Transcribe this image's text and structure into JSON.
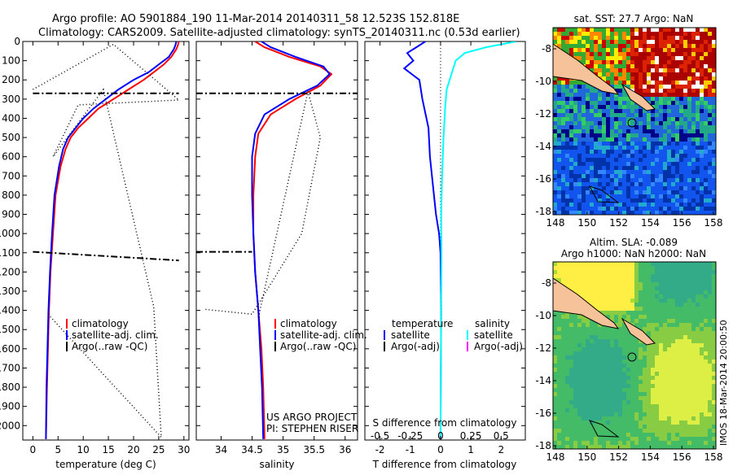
{
  "header": {
    "line1": "Argo profile: AO 5901884_190 11-Mar-2014 20140311_58 12.523S 152.818E",
    "line2": "Climatology: CARS2009. Satellite-adjusted climatology: synTS_20140311.nc (0.53d earlier)"
  },
  "colors": {
    "climatology": "#ff0000",
    "satellite": "#0000ff",
    "argo": "#000000",
    "salinity_satellite": "#00ffff",
    "salinity_argo": "#ff00ff"
  },
  "chart_data": [
    {
      "type": "line",
      "name": "temperature-panel",
      "xlabel": "temperature (deg C)",
      "ylabel": "",
      "xlim": [
        -2,
        31
      ],
      "ylim": [
        2075,
        0
      ],
      "xticks": [
        "0",
        "5",
        "10",
        "15",
        "20",
        "25",
        "30"
      ],
      "xtick_values": [
        0,
        5,
        10,
        15,
        20,
        25,
        30
      ],
      "yticks": [
        "0",
        "100",
        "200",
        "300",
        "400",
        "500",
        "600",
        "700",
        "800",
        "900",
        "1000",
        "1100",
        "1200",
        "1300",
        "1400",
        "1500",
        "1600",
        "1700",
        "1800",
        "1900",
        "2000"
      ],
      "ytick_values": [
        0,
        100,
        200,
        300,
        400,
        500,
        600,
        700,
        800,
        900,
        1000,
        1100,
        1200,
        1300,
        1400,
        1500,
        1600,
        1700,
        1800,
        1900,
        2000
      ],
      "legend": [
        "climatology",
        "satellite-adj. clim.",
        "Argo(..raw -QC)"
      ],
      "series": [
        {
          "name": "climatology",
          "x": [
            29,
            28.8,
            28.5,
            27.5,
            26,
            24,
            22,
            19,
            16,
            13,
            11,
            9,
            7.5,
            6.5,
            5.5,
            4.5,
            4,
            3.5,
            3.2,
            3,
            2.8,
            2.6
          ],
          "y": [
            0,
            20,
            40,
            80,
            120,
            160,
            200,
            250,
            300,
            350,
            400,
            450,
            500,
            560,
            650,
            800,
            1000,
            1200,
            1400,
            1600,
            1800,
            2070
          ]
        },
        {
          "name": "satellite-adj. clim.",
          "x": [
            28.5,
            28.3,
            28,
            27,
            25,
            23,
            20,
            17,
            14.5,
            12,
            10,
            8.5,
            7,
            6,
            5.2,
            4.3,
            3.8,
            3.4,
            3.1,
            2.9,
            2.7,
            2.6
          ],
          "y": [
            0,
            20,
            40,
            80,
            120,
            160,
            200,
            250,
            300,
            350,
            400,
            450,
            500,
            560,
            650,
            800,
            1000,
            1200,
            1400,
            1600,
            1800,
            2070
          ]
        },
        {
          "name": "Argo-dash-dot",
          "x": [
            0,
            29,
            0,
            29
          ],
          "y": [
            270,
            270,
            1095,
            1140
          ]
        },
        {
          "name": "Argo-dotted",
          "x": [
            0,
            16,
            29,
            9,
            4,
            14,
            24,
            25.5,
            3
          ],
          "y": [
            250,
            15,
            305,
            330,
            600,
            250,
            1380,
            2060,
            1420
          ]
        }
      ]
    },
    {
      "type": "line",
      "name": "salinity-panel",
      "xlabel": "salinity",
      "xlim": [
        33.6,
        36.2
      ],
      "ylim": [
        2075,
        0
      ],
      "xticks": [
        "34",
        "34.5",
        "35",
        "35.5",
        "36"
      ],
      "xtick_values": [
        34,
        34.5,
        35,
        35.5,
        36
      ],
      "legend": [
        "climatology",
        "satellite-adj. clim.",
        "Argo(..raw -QC)"
      ],
      "annotation": [
        "US ARGO PROJECT",
        "PI: STEPHEN RISER"
      ],
      "series": [
        {
          "name": "climatology",
          "x": [
            34.55,
            34.7,
            35.1,
            35.6,
            35.78,
            35.6,
            35.2,
            34.8,
            34.6,
            34.55,
            34.52,
            34.52,
            34.55,
            34.6,
            34.65,
            34.68,
            34.7
          ],
          "y": [
            0,
            30,
            80,
            130,
            170,
            230,
            300,
            380,
            480,
            600,
            800,
            1000,
            1200,
            1400,
            1600,
            1800,
            2070
          ]
        },
        {
          "name": "satellite-adj. clim.",
          "x": [
            34.65,
            34.8,
            35.2,
            35.65,
            35.75,
            35.55,
            35.1,
            34.7,
            34.55,
            34.5,
            34.5,
            34.52,
            34.55,
            34.6,
            34.63,
            34.66,
            34.68
          ],
          "y": [
            0,
            30,
            80,
            130,
            170,
            230,
            300,
            380,
            480,
            600,
            800,
            1000,
            1200,
            1400,
            1600,
            1800,
            2070
          ]
        },
        {
          "name": "Argo-dash-dot",
          "x": [
            33.6,
            36.2,
            33.6,
            34.5
          ],
          "y": [
            270,
            270,
            1095,
            1095
          ]
        },
        {
          "name": "Argo-dotted",
          "x": [
            33.75,
            34.5,
            35.3,
            35.6,
            35.4,
            34.6
          ],
          "y": [
            1395,
            1420,
            1000,
            500,
            260,
            1440
          ]
        }
      ]
    },
    {
      "type": "line",
      "name": "difference-panel",
      "xlabel": "T difference from climatology",
      "xlabel_top": "S difference from climatology",
      "xlim": [
        -2.5,
        2.8
      ],
      "ylim": [
        2075,
        0
      ],
      "xticks": [
        "-2",
        "-1",
        "0",
        "1",
        "2"
      ],
      "xtick_values": [
        -2,
        -1,
        0,
        1,
        2
      ],
      "xticks_top": [
        "-0.5",
        "-0.25",
        "0",
        "0.25",
        "0.5"
      ],
      "xtick_top_values": [
        -2,
        -1,
        0,
        1,
        2
      ],
      "legend_left_title": "temperature",
      "legend_left": [
        "satellite",
        "Argo(-adj)"
      ],
      "legend_right_title": "salinity",
      "legend_right": [
        "satellite",
        "Argo(-adj)"
      ],
      "series": [
        {
          "name": "T satellite",
          "x": [
            -0.5,
            -0.8,
            -1.1,
            -0.9,
            -1.2,
            -0.7,
            -0.6,
            -0.4,
            -0.35,
            -0.25,
            -0.15,
            -0.05,
            0,
            0.02,
            0.01,
            0
          ],
          "y": [
            0,
            30,
            60,
            100,
            140,
            200,
            300,
            450,
            600,
            750,
            900,
            1000,
            1100,
            1400,
            1700,
            2070
          ]
        },
        {
          "name": "S satellite",
          "x": [
            2.5,
            1.5,
            0.8,
            0.5,
            0.4,
            0.2,
            0.15,
            0.1,
            0.05,
            0.02,
            0.03,
            0.02,
            0.01,
            0
          ],
          "y": [
            0,
            30,
            60,
            100,
            150,
            250,
            350,
            500,
            700,
            900,
            1100,
            1400,
            1700,
            2070
          ]
        }
      ]
    }
  ],
  "sst_map": {
    "title": "sat. SST: 27.7 Argo: NaN",
    "xticks": [
      "148",
      "150",
      "152",
      "154",
      "156",
      "158"
    ],
    "yticks": [
      "-8",
      "-10",
      "-12",
      "-14",
      "-16",
      "-18"
    ]
  },
  "sla_map": {
    "title_line1": "Altim. SLA: -0.089",
    "title_line2": "Argo h1000: NaN h2000: NaN",
    "xticks": [
      "148",
      "150",
      "152",
      "154",
      "156",
      "158"
    ],
    "yticks": [
      "-8",
      "-10",
      "-12",
      "-14",
      "-16",
      "-18"
    ]
  },
  "footer": {
    "imos_label": "IMOS 18-Mar-2014 20:00:50"
  }
}
